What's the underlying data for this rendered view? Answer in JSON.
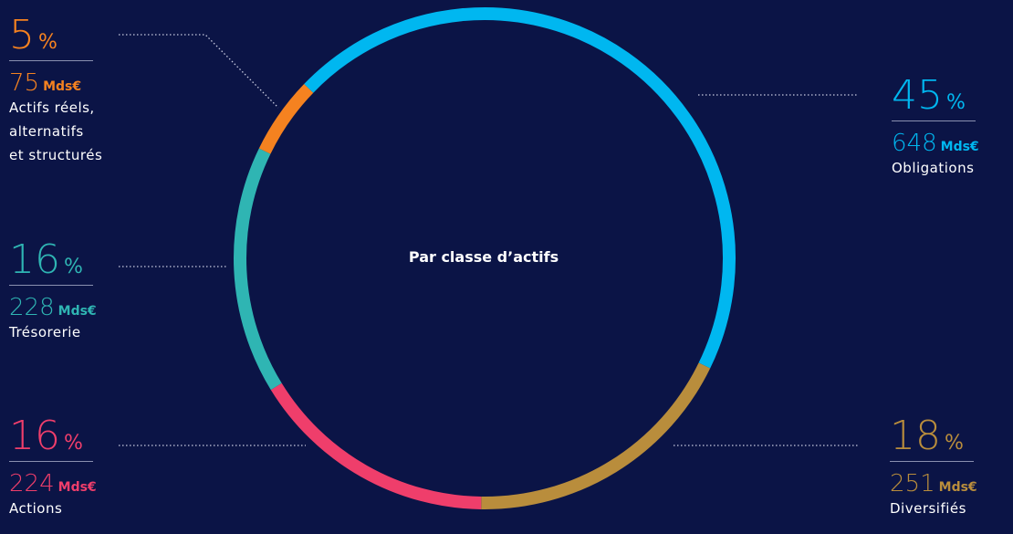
{
  "chart_data": {
    "type": "donut",
    "title": "Par classe d’actifs",
    "categories": [
      "Obligations",
      "Diversifiés",
      "Actions",
      "Trésorerie",
      "Actifs réels,\nalternatifs\net structurés"
    ],
    "values": [
      45,
      18,
      16,
      16,
      5
    ],
    "value_unit": "%",
    "amounts": [
      648,
      251,
      224,
      228,
      75
    ],
    "amount_unit": "Mds€",
    "colors": [
      "#00b7f0",
      "#b98d3c",
      "#ef3e6b",
      "#2fb5b3",
      "#f58220"
    ]
  }
}
